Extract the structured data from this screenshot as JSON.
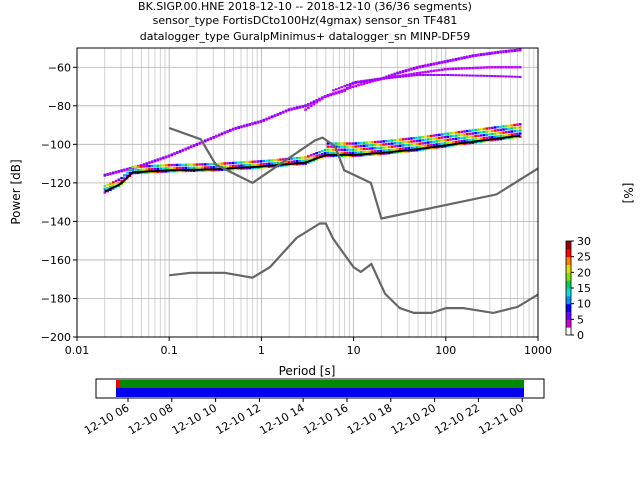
{
  "chart_data": {
    "type": "heatmap",
    "title_lines": [
      "BK.SIGP.00.HNE   2018-12-10 -- 2018-12-10  (36/36 segments)",
      "sensor_type FortisDCto100Hz(4gmax) sensor_sn TF481",
      "datalogger_type GuralpMinimus+ datalogger_sn MINP-DF59"
    ],
    "xlabel": "Period [s]",
    "ylabel": "Power [dB]",
    "xscale": "log",
    "xlim": [
      0.01,
      1000
    ],
    "ylim": [
      -200,
      -50
    ],
    "x_ticks": [
      "0.01",
      "0.1",
      "1",
      "10",
      "100",
      "1000"
    ],
    "y_ticks": [
      "−200",
      "−180",
      "−160",
      "−140",
      "−120",
      "−100",
      "−80",
      "−60"
    ],
    "grid": true,
    "colorbar": {
      "label": "[%]",
      "range": [
        0,
        30
      ],
      "ticks": [
        "0",
        "5",
        "10",
        "15",
        "20",
        "25",
        "30"
      ]
    },
    "noise_models": [
      {
        "curve": "NHNM",
        "x": [
          0.1,
          0.22,
          0.32,
          0.8,
          3.8,
          4.6,
          6.3,
          7.9,
          15.4,
          20,
          354.8,
          1000
        ],
        "y": [
          -91.5,
          -97.4,
          -110.5,
          -120,
          -98,
          -96.5,
          -101,
          -113.5,
          -120,
          -138.5,
          -126,
          -112.5
        ]
      },
      {
        "curve": "NLNM",
        "x": [
          0.1,
          0.17,
          0.4,
          0.8,
          1.24,
          2.4,
          4.3,
          5,
          6,
          10,
          12,
          15.6,
          21.9,
          31.6,
          45,
          70,
          101,
          154,
          328,
          600,
          1000
        ],
        "y": [
          -168,
          -166.7,
          -166.7,
          -169.2,
          -163.7,
          -148.6,
          -141.1,
          -141.1,
          -149,
          -163.8,
          -166.2,
          -162.1,
          -177.5,
          -185,
          -187.5,
          -187.5,
          -185,
          -185,
          -187.5,
          -184.4,
          -178
        ]
      }
    ],
    "series": [
      {
        "name": "",
        "x": [
          0.02,
          0.03,
          0.04,
          0.1,
          0.3,
          1,
          3,
          5,
          10,
          20,
          50,
          100,
          300,
          640
        ],
        "y": [
          -126,
          -122,
          -116,
          -115,
          -114.5,
          -113,
          -111,
          -107,
          -107,
          -106,
          -104,
          -102,
          -99,
          -97
        ]
      },
      {
        "name": "",
        "x": [
          0.02,
          0.05,
          0.1,
          0.2,
          0.5,
          1,
          2,
          3,
          5,
          8,
          10,
          20,
          30,
          50,
          100,
          200,
          400,
          640
        ],
        "y": [
          -116,
          -111,
          -106,
          -100,
          -92,
          -88,
          -82,
          -80,
          -75,
          -72,
          -68,
          -66,
          -63,
          -60,
          -57,
          -54,
          -52,
          -51
        ]
      },
      {
        "name": "",
        "x": [
          3,
          5,
          10,
          20,
          50,
          100,
          300,
          640
        ],
        "y": [
          -82,
          -75,
          -70,
          -66,
          -63,
          -61,
          -60,
          -60
        ]
      },
      {
        "name": "",
        "x": [
          6,
          10,
          20,
          50,
          100,
          300,
          640
        ],
        "y": [
          -72,
          -68,
          -66,
          -64,
          -64,
          -64.5,
          -65
        ]
      }
    ],
    "timeline": {
      "x_ticks": [
        "12-10 06",
        "12-10 08",
        "12-10 10",
        "12-10 12",
        "12-10 14",
        "12-10 16",
        "12-10 18",
        "12-10 20",
        "12-10 22",
        "12-11 00"
      ],
      "colors": {
        "data": "#0000ee",
        "gaps": "#008800",
        "start": "#ee0000"
      }
    }
  }
}
